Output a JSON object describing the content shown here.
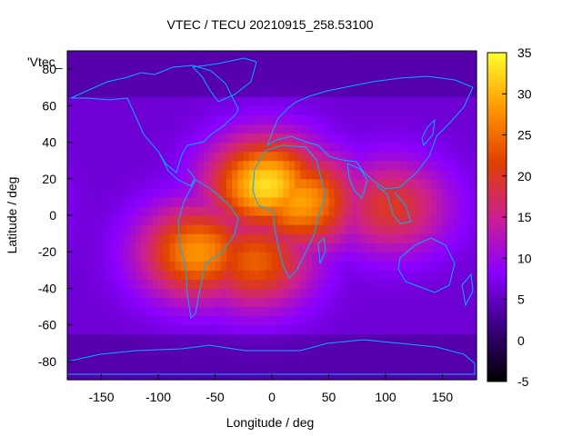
{
  "chart_data": {
    "type": "heatmap",
    "title": "VTEC / TECU 20210915_258.53100",
    "xlabel": "Longitude / deg",
    "ylabel": "Latitude / deg",
    "legend_label": "'Vtec_",
    "xlim": [
      -180,
      180
    ],
    "ylim": [
      -90,
      90
    ],
    "x_ticks": [
      -150,
      -100,
      -50,
      0,
      50,
      100,
      150
    ],
    "y_ticks": [
      -80,
      -60,
      -40,
      -20,
      0,
      20,
      40,
      60,
      80
    ],
    "colorbar": {
      "range": [
        -5,
        35
      ],
      "ticks": [
        -5,
        0,
        5,
        10,
        15,
        20,
        25,
        30,
        35
      ],
      "palette": [
        "#000000",
        "#3a0080",
        "#8a00ff",
        "#cc2090",
        "#e04000",
        "#ff9900",
        "#ffff30"
      ]
    },
    "grid_step_deg": 5,
    "tec_features": [
      {
        "name": "background",
        "value": 6
      },
      {
        "name": "subsolar-crest-africa-north",
        "lon": -5,
        "lat": 17,
        "peak": 33
      },
      {
        "name": "crest-africa-equator",
        "lon": 25,
        "lat": 8,
        "peak": 29
      },
      {
        "name": "crest-south-america",
        "lon": -65,
        "lat": -20,
        "peak": 28
      },
      {
        "name": "crest-south-atlantic",
        "lon": -15,
        "lat": -25,
        "peak": 24
      },
      {
        "name": "tail-indian-ocean",
        "lon": 105,
        "lat": 5,
        "peak": 20
      }
    ],
    "coastline_color": "#00b0ff",
    "grid": false
  }
}
